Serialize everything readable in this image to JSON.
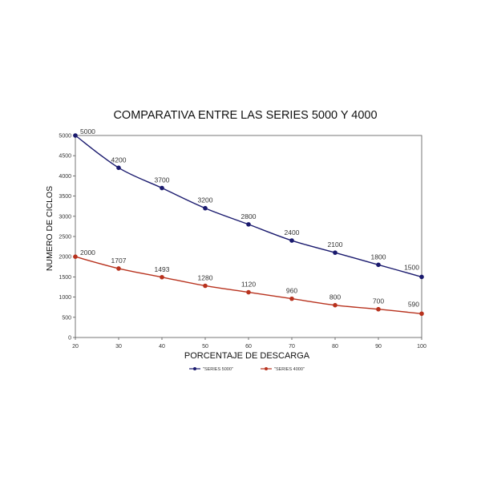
{
  "chart_data": {
    "type": "line",
    "title": "COMPARATIVA ENTRE LAS SERIES 5000 Y 4000",
    "xlabel": "PORCENTAJE DE DESCARGA",
    "ylabel": "NUMERO DE CICLOS",
    "x": [
      20,
      30,
      40,
      50,
      60,
      70,
      80,
      90,
      100
    ],
    "xlim": [
      20,
      100
    ],
    "ylim": [
      0,
      5000
    ],
    "x_ticks": [
      "20",
      "30",
      "40",
      "50",
      "60",
      "70",
      "80",
      "90",
      "100"
    ],
    "y_ticks": [
      "0",
      "500",
      "1000",
      "1500",
      "2000",
      "2500",
      "3000",
      "3500",
      "4000",
      "4500",
      "5000"
    ],
    "grid": false,
    "legend_position": "bottom-center",
    "series": [
      {
        "name": "\"SERIES 5000\"",
        "color": "#1a1a6e",
        "values": [
          5000,
          4200,
          3700,
          3200,
          2800,
          2400,
          2100,
          1800,
          1500
        ],
        "labels": [
          "5000",
          "4200",
          "3700",
          "3200",
          "2800",
          "2400",
          "2100",
          "1800",
          "1500"
        ]
      },
      {
        "name": "\"SERIES 4000\"",
        "color": "#b8321e",
        "values": [
          2000,
          1707,
          1493,
          1280,
          1120,
          960,
          800,
          700,
          590
        ],
        "labels": [
          "2000",
          "1707",
          "1493",
          "1280",
          "1120",
          "960",
          "800",
          "700",
          "590"
        ]
      }
    ]
  }
}
